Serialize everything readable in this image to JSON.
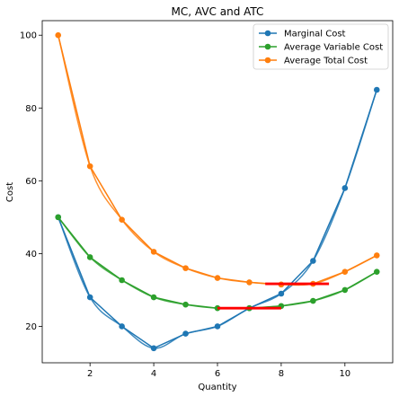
{
  "chart_data": {
    "type": "line",
    "title": "MC, AVC and ATC",
    "xlabel": "Quantity",
    "ylabel": "Cost",
    "xlim": [
      0.5,
      11.5
    ],
    "ylim": [
      10,
      104
    ],
    "x_ticks": [
      2,
      4,
      6,
      8,
      10
    ],
    "y_ticks": [
      20,
      40,
      60,
      80,
      100
    ],
    "grid": false,
    "legend_position": "top-right",
    "series": [
      {
        "name": "Marginal Cost",
        "color": "#1f77b4",
        "x": [
          1,
          2,
          3,
          4,
          5,
          6,
          7,
          8,
          9,
          10,
          11
        ],
        "y": [
          50,
          28,
          20,
          14,
          18,
          20,
          25,
          29,
          38,
          58,
          85
        ]
      },
      {
        "name": "Average Variable Cost",
        "color": "#2ca02c",
        "x": [
          1,
          2,
          3,
          4,
          5,
          6,
          7,
          8,
          9,
          10,
          11
        ],
        "y": [
          50,
          39,
          32.7,
          28,
          26,
          25,
          25,
          25.6,
          27,
          30,
          35
        ]
      },
      {
        "name": "Average Total Cost",
        "color": "#ff7f0e",
        "x": [
          1,
          2,
          3,
          4,
          5,
          6,
          7,
          8,
          9,
          10,
          11
        ],
        "y": [
          100,
          64,
          49.3,
          40.5,
          36,
          33.3,
          32.1,
          31.5,
          31.7,
          35,
          39.5
        ]
      }
    ],
    "highlight_segments": [
      {
        "color": "#ff0000",
        "x": [
          6.0,
          8.0
        ],
        "y": [
          25,
          25
        ]
      },
      {
        "color": "#ff0000",
        "x": [
          7.5,
          9.5
        ],
        "y": [
          31.7,
          31.7
        ]
      }
    ]
  }
}
